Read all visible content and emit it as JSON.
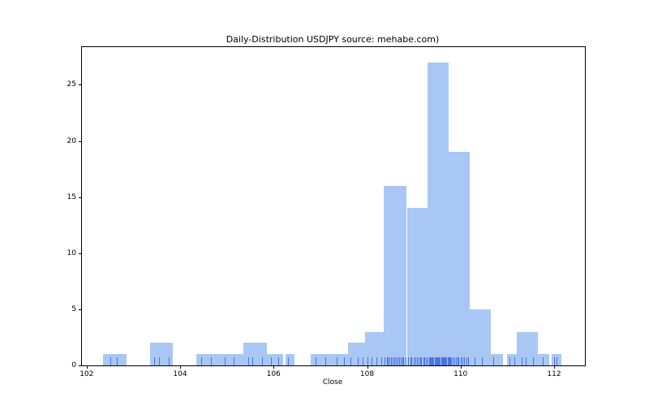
{
  "chart_data": {
    "type": "bar",
    "subtype": "histogram-with-rug",
    "title": "Daily-Distribution USDJPY source: mehabe.com)",
    "xlabel": "Close",
    "ylabel": "",
    "xlim": [
      101.9,
      112.66
    ],
    "ylim": [
      0,
      28.35
    ],
    "xticks": [
      102,
      104,
      106,
      108,
      110,
      112
    ],
    "yticks": [
      0,
      5,
      10,
      15,
      20,
      25
    ],
    "grid": false,
    "legend": false,
    "colors": {
      "bar": "#a9c7f4",
      "rug": "#4169e1",
      "axis": "#000000"
    },
    "bins": [
      {
        "x0": 102.35,
        "x1": 102.85,
        "count": 1
      },
      {
        "x0": 103.35,
        "x1": 103.85,
        "count": 2
      },
      {
        "x0": 104.35,
        "x1": 104.85,
        "count": 1
      },
      {
        "x0": 104.85,
        "x1": 105.35,
        "count": 1
      },
      {
        "x0": 105.35,
        "x1": 105.85,
        "count": 2
      },
      {
        "x0": 105.85,
        "x1": 106.2,
        "count": 1
      },
      {
        "x0": 106.25,
        "x1": 106.45,
        "count": 1
      },
      {
        "x0": 106.8,
        "x1": 107.3,
        "count": 1
      },
      {
        "x0": 107.3,
        "x1": 107.6,
        "count": 1
      },
      {
        "x0": 107.6,
        "x1": 107.95,
        "count": 2
      },
      {
        "x0": 107.95,
        "x1": 108.35,
        "count": 3
      },
      {
        "x0": 108.35,
        "x1": 108.85,
        "count": 16
      },
      {
        "x0": 108.85,
        "x1": 109.3,
        "count": 14
      },
      {
        "x0": 109.3,
        "x1": 109.75,
        "count": 27
      },
      {
        "x0": 109.75,
        "x1": 110.2,
        "count": 19
      },
      {
        "x0": 110.2,
        "x1": 110.65,
        "count": 5
      },
      {
        "x0": 110.65,
        "x1": 110.9,
        "count": 1
      },
      {
        "x0": 111.0,
        "x1": 111.2,
        "count": 1
      },
      {
        "x0": 111.2,
        "x1": 111.65,
        "count": 3
      },
      {
        "x0": 111.65,
        "x1": 111.9,
        "count": 1
      },
      {
        "x0": 111.95,
        "x1": 112.15,
        "count": 1
      }
    ],
    "rug_values": [
      102.5,
      102.65,
      103.45,
      103.55,
      103.75,
      104.45,
      104.65,
      104.95,
      105.15,
      105.45,
      105.55,
      105.75,
      105.95,
      106.1,
      106.3,
      106.9,
      107.1,
      107.35,
      107.5,
      107.65,
      107.8,
      107.9,
      108.0,
      108.1,
      108.2,
      108.3,
      108.38,
      108.42,
      108.45,
      108.48,
      108.52,
      108.55,
      108.58,
      108.62,
      108.65,
      108.68,
      108.72,
      108.75,
      108.78,
      108.82,
      108.88,
      108.92,
      108.95,
      109.0,
      109.03,
      109.06,
      109.1,
      109.13,
      109.16,
      109.2,
      109.23,
      109.26,
      109.3,
      109.32,
      109.34,
      109.36,
      109.38,
      109.4,
      109.42,
      109.44,
      109.46,
      109.48,
      109.5,
      109.52,
      109.54,
      109.56,
      109.58,
      109.6,
      109.62,
      109.64,
      109.66,
      109.68,
      109.7,
      109.72,
      109.74,
      109.76,
      109.78,
      109.8,
      109.83,
      109.86,
      109.9,
      109.93,
      109.96,
      110.0,
      110.04,
      110.08,
      110.12,
      110.16,
      110.3,
      110.45,
      110.7,
      111.05,
      111.15,
      111.3,
      111.4,
      111.55,
      111.75,
      112.0,
      112.05
    ]
  }
}
